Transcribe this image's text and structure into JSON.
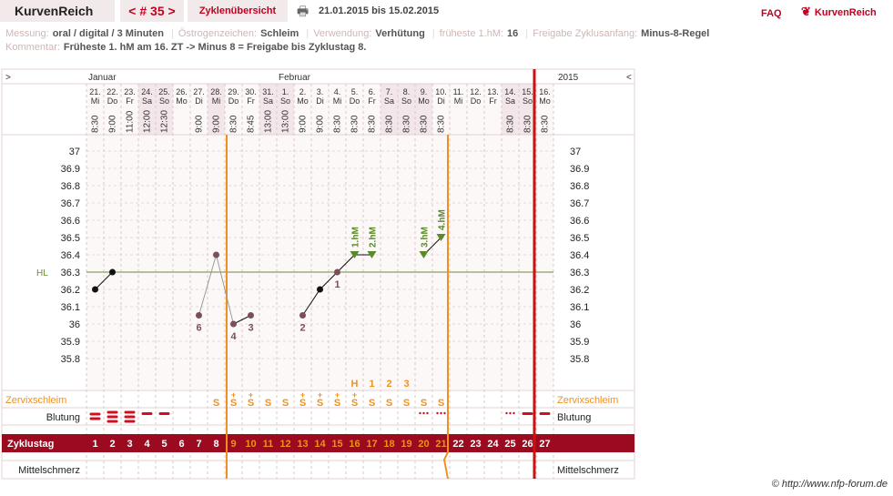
{
  "header": {
    "brand": "KurvenReich",
    "cycle_nav": "< # 35 >",
    "overview_label": "Zyklenübersicht",
    "date_range": "21.01.2015 bis 15.02.2015",
    "faq": "FAQ",
    "logo_text": "KurvenReich",
    "printer_icon": "printer-icon",
    "logo_icon": "hearts-logo-icon"
  },
  "meta": {
    "messung_label": "Messung:",
    "messung": "oral / digital / 3 Minuten",
    "oestrogen_label": "Östrogenzeichen:",
    "oestrogen": "Schleim",
    "verwendung_label": "Verwendung:",
    "verwendung": "Verhütung",
    "fhm_label": "früheste 1.hM:",
    "fhm": "16",
    "freigabe_label": "Freigabe Zyklusanfang:",
    "freigabe": "Minus-8-Regel",
    "kommentar_label": "Kommentar:",
    "kommentar": "Früheste 1. hM am 16. ZT -> Minus 8 = Freigabe bis Zyklustag 8."
  },
  "grid": {
    "nav_prev": ">",
    "nav_next": "<",
    "year": "2015",
    "months": [
      {
        "label": "Januar",
        "day": 0
      },
      {
        "label": "Februar",
        "day": 11
      }
    ],
    "days": [
      {
        "date": "21.",
        "wd": "Mi",
        "time": "8:30"
      },
      {
        "date": "22.",
        "wd": "Do",
        "time": "9:00"
      },
      {
        "date": "23.",
        "wd": "Fr",
        "time": "11:00"
      },
      {
        "date": "24.",
        "wd": "Sa",
        "time": "12:00"
      },
      {
        "date": "25.",
        "wd": "So",
        "time": "12:30"
      },
      {
        "date": "26.",
        "wd": "Mo",
        "time": ""
      },
      {
        "date": "27.",
        "wd": "Di",
        "time": "9:00"
      },
      {
        "date": "28.",
        "wd": "Mi",
        "time": "9:00"
      },
      {
        "date": "29.",
        "wd": "Do",
        "time": "8:30"
      },
      {
        "date": "30.",
        "wd": "Fr",
        "time": "8:45"
      },
      {
        "date": "31.",
        "wd": "Sa",
        "time": "13:00"
      },
      {
        "date": "1.",
        "wd": "So",
        "time": "13:00"
      },
      {
        "date": "2.",
        "wd": "Mo",
        "time": "9:00"
      },
      {
        "date": "3.",
        "wd": "Di",
        "time": "9:00"
      },
      {
        "date": "4.",
        "wd": "Mi",
        "time": "8:30"
      },
      {
        "date": "5.",
        "wd": "Do",
        "time": "8:30"
      },
      {
        "date": "6.",
        "wd": "Fr",
        "time": "8:30"
      },
      {
        "date": "7.",
        "wd": "Sa",
        "time": "8:30"
      },
      {
        "date": "8.",
        "wd": "So",
        "time": "8:30"
      },
      {
        "date": "9.",
        "wd": "Mo",
        "time": "8:30"
      },
      {
        "date": "10.",
        "wd": "Di",
        "time": "8:30"
      },
      {
        "date": "11.",
        "wd": "Mi",
        "time": ""
      },
      {
        "date": "12.",
        "wd": "Do",
        "time": ""
      },
      {
        "date": "13.",
        "wd": "Fr",
        "time": ""
      },
      {
        "date": "14.",
        "wd": "Sa",
        "time": "8:30"
      },
      {
        "date": "15.",
        "wd": "So",
        "time": "8:30"
      },
      {
        "date": "16.",
        "wd": "Mo",
        "time": "8:30"
      }
    ],
    "shaded_days": [
      3,
      4,
      7,
      10,
      11,
      17,
      18,
      19,
      24,
      25
    ],
    "y_ticks": [
      37,
      36.9,
      36.8,
      36.7,
      36.6,
      36.5,
      36.4,
      36.3,
      36.2,
      36.1,
      36,
      35.9,
      35.8
    ],
    "hl_label": "HL",
    "hl_value": 36.3,
    "row_labels": {
      "zervix": "Zervixschleim",
      "blutung": "Blutung",
      "zyklustag": "Zyklustag",
      "mittelschmerz": "Mittelschmerz"
    },
    "colors": {
      "accent": "#9b0a1f",
      "orange": "#f0901e",
      "green": "#5a8a2a",
      "point": "#7a4f5a"
    }
  },
  "chart_data": {
    "type": "line",
    "x_label": "Zyklustag",
    "y_range": [
      35.7,
      37.1
    ],
    "series": [
      {
        "points": [
          [
            1,
            36.2
          ],
          [
            2,
            36.3
          ]
        ],
        "style": "black"
      },
      {
        "points": [
          [
            7,
            36.05
          ],
          [
            8,
            36.4
          ],
          [
            9,
            36.0
          ]
        ],
        "style": "excluded"
      },
      {
        "points": [
          [
            9,
            36.0
          ],
          [
            10,
            36.05
          ]
        ],
        "style": "black"
      },
      {
        "points": [
          [
            13,
            36.05
          ],
          [
            14,
            36.2
          ],
          [
            15,
            36.3
          ],
          [
            16,
            36.4
          ],
          [
            17,
            36.4
          ]
        ],
        "style": "black"
      },
      {
        "points": [
          [
            20,
            36.4
          ],
          [
            21,
            36.5
          ]
        ],
        "style": "black"
      }
    ],
    "excluded_points": [
      [
        7,
        36.05
      ],
      [
        8,
        36.4
      ],
      [
        9,
        36.0
      ],
      [
        10,
        36.05
      ],
      [
        13,
        36.05
      ],
      [
        15,
        36.3
      ]
    ],
    "point_labels": [
      {
        "day": 7,
        "text": "6"
      },
      {
        "day": 9,
        "text": "4"
      },
      {
        "day": 10,
        "text": "3"
      },
      {
        "day": 13,
        "text": "2"
      },
      {
        "day": 15,
        "text": "1"
      }
    ],
    "hm_labels": [
      {
        "day": 16,
        "text": "1.hM"
      },
      {
        "day": 17,
        "text": "2.hM"
      },
      {
        "day": 20,
        "text": "3.hM"
      },
      {
        "day": 21,
        "text": "4.hM"
      }
    ],
    "hm_triangle_days": [
      16,
      17,
      20,
      21
    ],
    "peak_row": [
      {
        "day": 16,
        "text": "H"
      },
      {
        "day": 17,
        "text": "1"
      },
      {
        "day": 18,
        "text": "2"
      },
      {
        "day": 19,
        "text": "3"
      }
    ],
    "zervix": [
      {
        "day": 8,
        "text": "S"
      },
      {
        "day": 9,
        "text": "S",
        "plus": true
      },
      {
        "day": 10,
        "text": "S",
        "plus": true
      },
      {
        "day": 11,
        "text": "S"
      },
      {
        "day": 12,
        "text": "S"
      },
      {
        "day": 13,
        "text": "S",
        "plus": true
      },
      {
        "day": 14,
        "text": "S",
        "plus": true
      },
      {
        "day": 15,
        "text": "S",
        "plus": true
      },
      {
        "day": 16,
        "text": "S",
        "plus": true
      },
      {
        "day": 17,
        "text": "S"
      },
      {
        "day": 18,
        "text": "S"
      },
      {
        "day": 19,
        "text": "S"
      },
      {
        "day": 20,
        "text": "S"
      },
      {
        "day": 21,
        "text": "S"
      }
    ],
    "blutung": [
      {
        "day": 1,
        "level": "heavy2"
      },
      {
        "day": 2,
        "level": "heavy3"
      },
      {
        "day": 3,
        "level": "heavy3"
      },
      {
        "day": 4,
        "level": "medium"
      },
      {
        "day": 5,
        "level": "light"
      },
      {
        "day": 20,
        "level": "spotting"
      },
      {
        "day": 21,
        "level": "spotting"
      },
      {
        "day": 25,
        "level": "spotting"
      },
      {
        "day": 26,
        "level": "light"
      },
      {
        "day": 27,
        "level": "light"
      }
    ],
    "zyklustage": [
      1,
      2,
      3,
      4,
      5,
      6,
      7,
      8,
      9,
      10,
      11,
      12,
      13,
      14,
      15,
      16,
      17,
      18,
      19,
      20,
      21,
      22,
      23,
      24,
      25,
      26,
      27
    ],
    "highlight_days": [
      9,
      10,
      11,
      12,
      13,
      14,
      15,
      16,
      17,
      18,
      19,
      20,
      21
    ],
    "orange_line_days": [
      9,
      21
    ],
    "cycle_end_day": 27
  },
  "footer": {
    "copyright": "© http://www.nfp-forum.de"
  }
}
